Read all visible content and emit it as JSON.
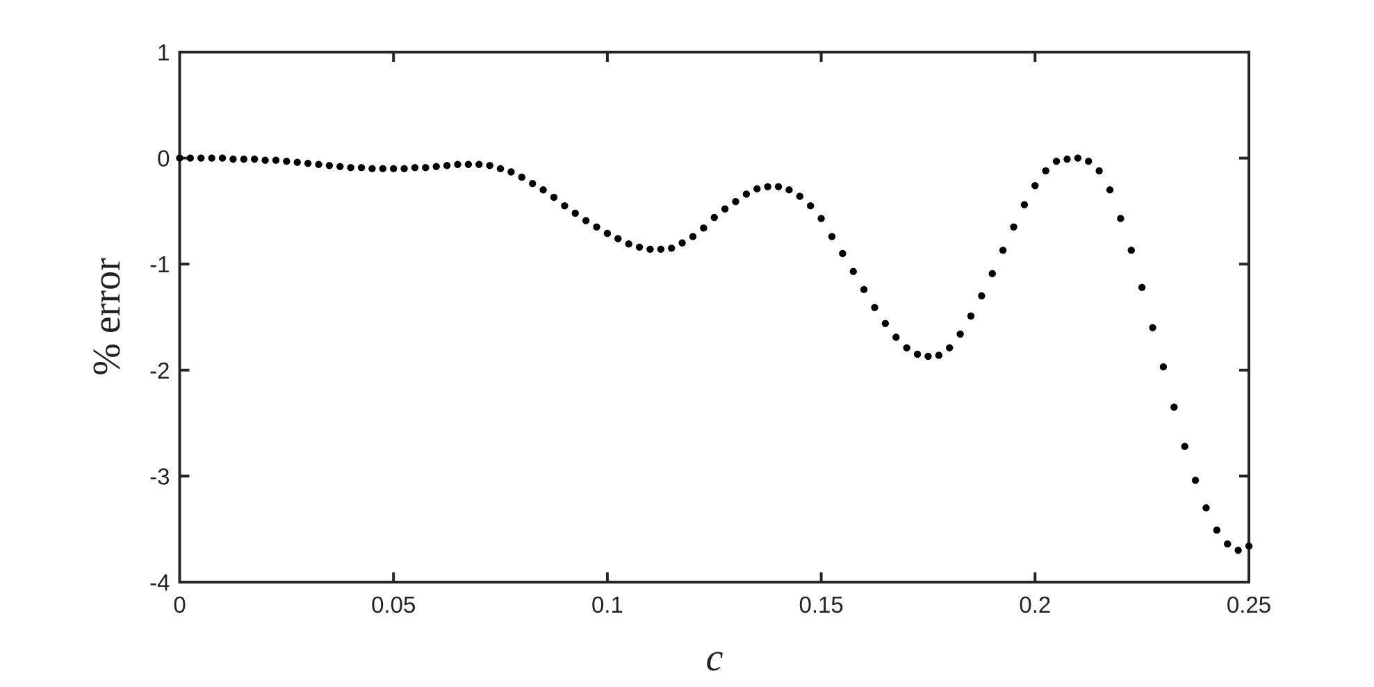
{
  "chart_data": {
    "type": "scatter",
    "xlabel": "c",
    "ylabel": "% error",
    "color": "#000000",
    "x": [
      0,
      0.0025,
      0.005,
      0.0075,
      0.01,
      0.0125,
      0.015,
      0.0175,
      0.02,
      0.0225,
      0.025,
      0.0275,
      0.03,
      0.0325,
      0.035,
      0.0375,
      0.04,
      0.0425,
      0.045,
      0.0475,
      0.05,
      0.0525,
      0.055,
      0.0575,
      0.06,
      0.0625,
      0.065,
      0.0675,
      0.07,
      0.0725,
      0.075,
      0.0775,
      0.08,
      0.0825,
      0.085,
      0.0875,
      0.09,
      0.0925,
      0.095,
      0.0975,
      0.1,
      0.1025,
      0.105,
      0.1075,
      0.11,
      0.1125,
      0.115,
      0.1175,
      0.12,
      0.1225,
      0.125,
      0.1275,
      0.13,
      0.1325,
      0.135,
      0.1375,
      0.14,
      0.1425,
      0.145,
      0.1475,
      0.15,
      0.1525,
      0.155,
      0.1575,
      0.16,
      0.1625,
      0.165,
      0.1675,
      0.17,
      0.1725,
      0.175,
      0.1775,
      0.18,
      0.1825,
      0.185,
      0.1875,
      0.19,
      0.1925,
      0.195,
      0.1975,
      0.2,
      0.2025,
      0.205,
      0.2075,
      0.21,
      0.2125,
      0.215,
      0.2175,
      0.22,
      0.2225,
      0.225,
      0.2275,
      0.23,
      0.2325,
      0.235,
      0.2375,
      0.24,
      0.2425,
      0.245,
      0.2475,
      0.25
    ],
    "values": [
      0,
      0,
      0,
      0,
      0,
      -0.01,
      -0.01,
      -0.01,
      -0.02,
      -0.02,
      -0.03,
      -0.04,
      -0.05,
      -0.06,
      -0.07,
      -0.08,
      -0.09,
      -0.09,
      -0.1,
      -0.1,
      -0.1,
      -0.1,
      -0.09,
      -0.09,
      -0.08,
      -0.07,
      -0.06,
      -0.06,
      -0.06,
      -0.07,
      -0.1,
      -0.13,
      -0.18,
      -0.24,
      -0.3,
      -0.37,
      -0.45,
      -0.52,
      -0.59,
      -0.65,
      -0.71,
      -0.76,
      -0.81,
      -0.84,
      -0.86,
      -0.86,
      -0.85,
      -0.8,
      -0.74,
      -0.66,
      -0.56,
      -0.48,
      -0.41,
      -0.34,
      -0.29,
      -0.27,
      -0.27,
      -0.3,
      -0.36,
      -0.45,
      -0.57,
      -0.74,
      -0.9,
      -1.07,
      -1.24,
      -1.41,
      -1.56,
      -1.69,
      -1.79,
      -1.85,
      -1.87,
      -1.86,
      -1.79,
      -1.66,
      -1.49,
      -1.3,
      -1.09,
      -0.87,
      -0.65,
      -0.44,
      -0.26,
      -0.12,
      -0.03,
      -0.01,
      0,
      -0.03,
      -0.12,
      -0.3,
      -0.57,
      -0.87,
      -1.22,
      -1.6,
      -1.97,
      -2.35,
      -2.72,
      -3.04,
      -3.3,
      -3.51,
      -3.64,
      -3.7,
      -3.66
    ],
    "xlim": [
      0,
      0.25
    ],
    "ylim": [
      -4,
      1
    ],
    "xticks": [
      0,
      0.05,
      0.1,
      0.15,
      0.2,
      0.25
    ],
    "yticks": [
      -4,
      -3,
      -2,
      -1,
      0,
      1
    ],
    "grid": false
  }
}
